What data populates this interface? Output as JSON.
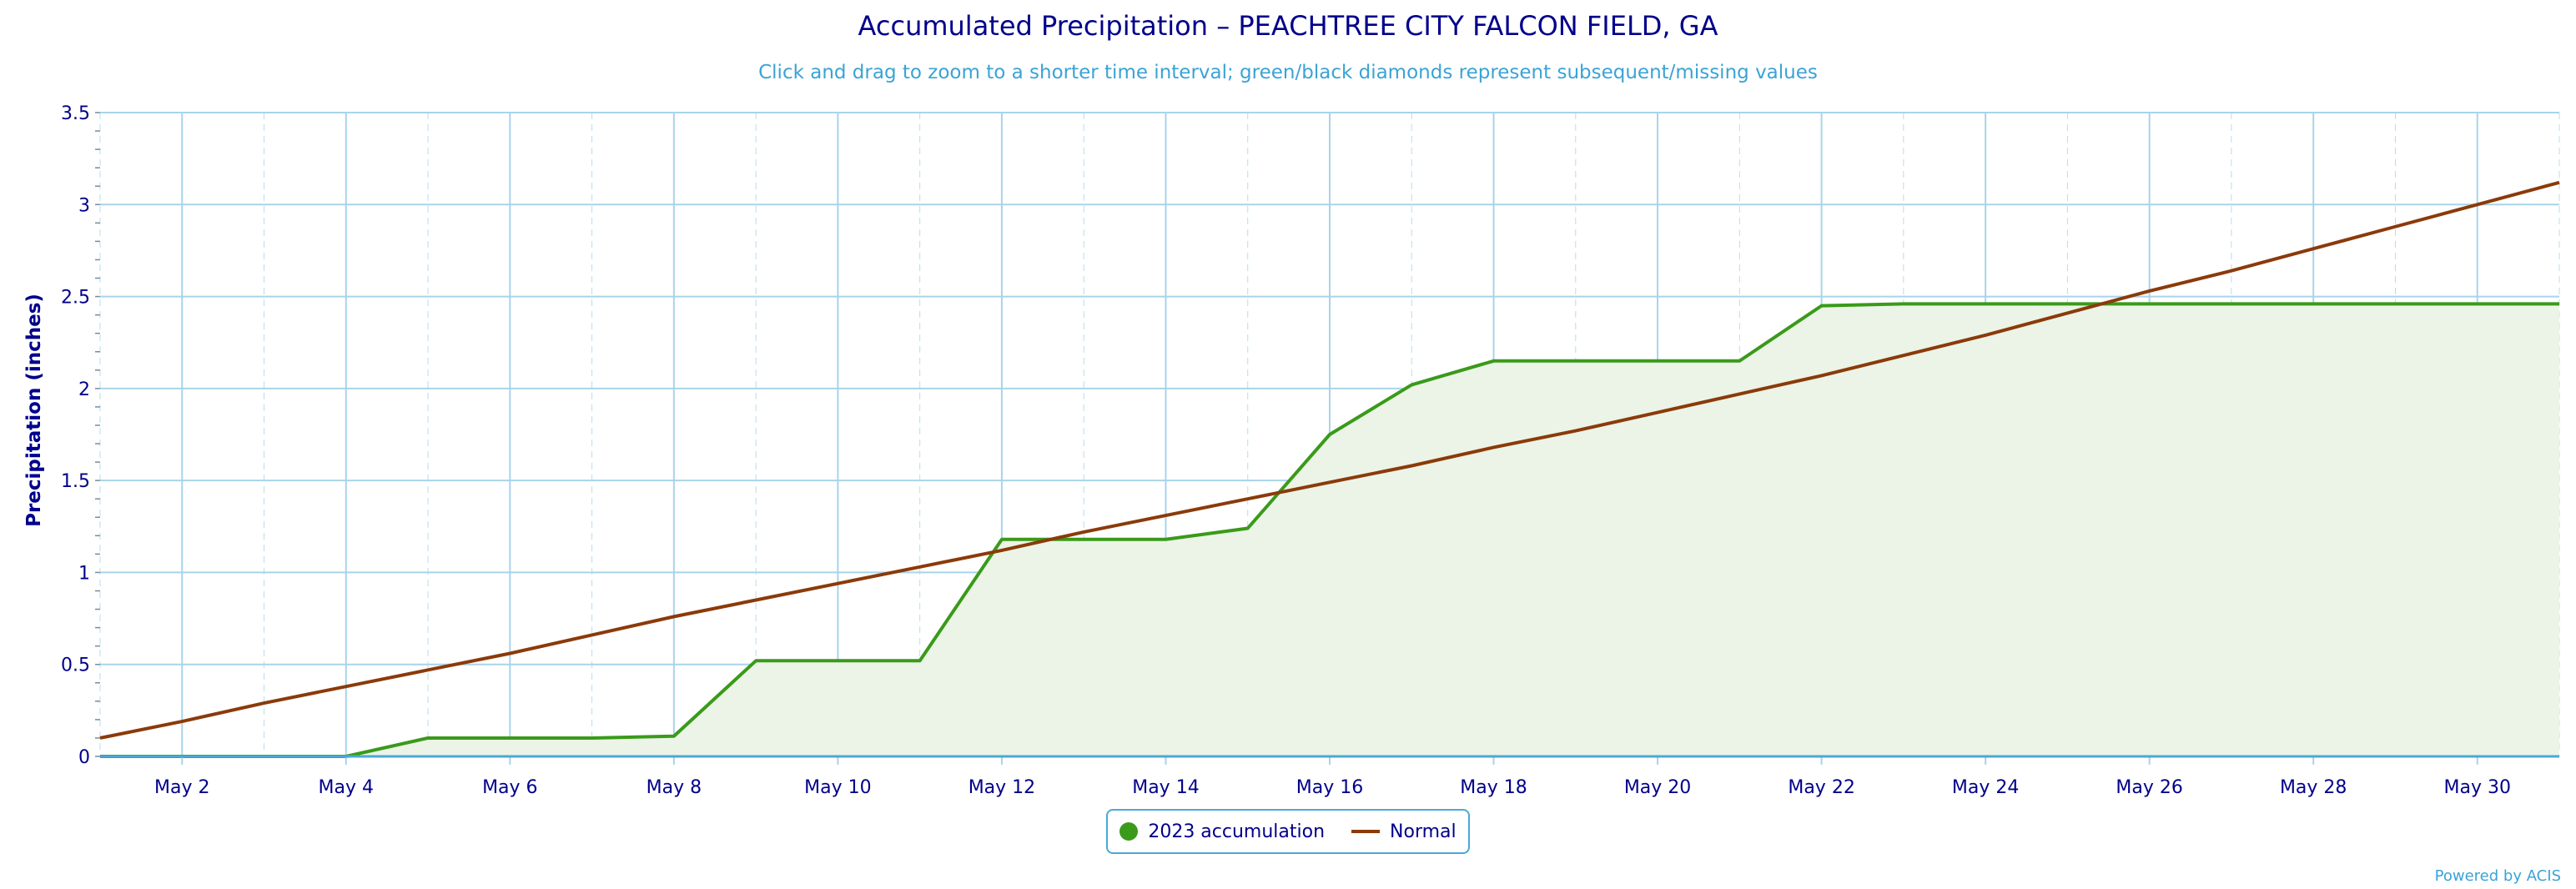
{
  "title": "Accumulated Precipitation – PEACHTREE CITY FALCON FIELD, GA",
  "subtitle": "Click and drag to zoom to a shorter time interval; green/black diamonds represent subsequent/missing values",
  "credit": "Powered by ACIS",
  "colors": {
    "accumulation_line": "#3a9a1a",
    "accumulation_fill": "#ebf4e6",
    "normal_line": "#8b3a0a",
    "grid": "#a8d4ea",
    "axis_text": "#00008b"
  },
  "legend": {
    "items": [
      {
        "label": "2023 accumulation",
        "symbol": "dot",
        "color": "#3a9a1a"
      },
      {
        "label": "Normal",
        "symbol": "line",
        "color": "#8b3a0a"
      }
    ]
  },
  "chart_data": {
    "type": "area",
    "title": "Accumulated Precipitation – PEACHTREE CITY FALCON FIELD, GA",
    "ylabel": "Precipitation (inches)",
    "xlabel": "",
    "ylim": [
      0,
      3.5
    ],
    "y_ticks": [
      "0",
      "0.5",
      "1",
      "1.5",
      "2",
      "2.5",
      "3",
      "3.5"
    ],
    "xlim": [
      1,
      31
    ],
    "x_ticks": [
      {
        "day": 2,
        "label": "May 2"
      },
      {
        "day": 4,
        "label": "May 4"
      },
      {
        "day": 6,
        "label": "May 6"
      },
      {
        "day": 8,
        "label": "May 8"
      },
      {
        "day": 10,
        "label": "May 10"
      },
      {
        "day": 12,
        "label": "May 12"
      },
      {
        "day": 14,
        "label": "May 14"
      },
      {
        "day": 16,
        "label": "May 16"
      },
      {
        "day": 18,
        "label": "May 18"
      },
      {
        "day": 20,
        "label": "May 20"
      },
      {
        "day": 22,
        "label": "May 22"
      },
      {
        "day": 24,
        "label": "May 24"
      },
      {
        "day": 26,
        "label": "May 26"
      },
      {
        "day": 28,
        "label": "May 28"
      },
      {
        "day": 30,
        "label": "May 30"
      }
    ],
    "grid": true,
    "legend_position": "bottom-center",
    "series": [
      {
        "name": "2023 accumulation",
        "x": [
          1,
          2,
          3,
          4,
          5,
          6,
          7,
          8,
          9,
          10,
          11,
          12,
          13,
          14,
          15,
          16,
          17,
          18,
          19,
          20,
          21,
          22,
          23,
          24,
          25,
          26,
          27,
          28,
          29,
          30,
          31
        ],
        "values": [
          0,
          0,
          0,
          0,
          0.1,
          0.1,
          0.1,
          0.11,
          0.52,
          0.52,
          0.52,
          1.18,
          1.18,
          1.18,
          1.24,
          1.75,
          2.02,
          2.15,
          2.15,
          2.15,
          2.15,
          2.45,
          2.46,
          2.46,
          2.46,
          2.46,
          2.46,
          2.46,
          2.46,
          2.46,
          2.46
        ]
      },
      {
        "name": "Normal",
        "x": [
          1,
          2,
          3,
          4,
          5,
          6,
          7,
          8,
          9,
          10,
          11,
          12,
          13,
          14,
          15,
          16,
          17,
          18,
          19,
          20,
          21,
          22,
          23,
          24,
          25,
          26,
          27,
          28,
          29,
          30,
          31
        ],
        "values": [
          0.1,
          0.19,
          0.29,
          0.38,
          0.47,
          0.56,
          0.66,
          0.76,
          0.85,
          0.94,
          1.03,
          1.12,
          1.22,
          1.31,
          1.4,
          1.49,
          1.58,
          1.68,
          1.77,
          1.87,
          1.97,
          2.07,
          2.18,
          2.29,
          2.41,
          2.53,
          2.64,
          2.76,
          2.88,
          3.0,
          3.12
        ]
      }
    ]
  }
}
